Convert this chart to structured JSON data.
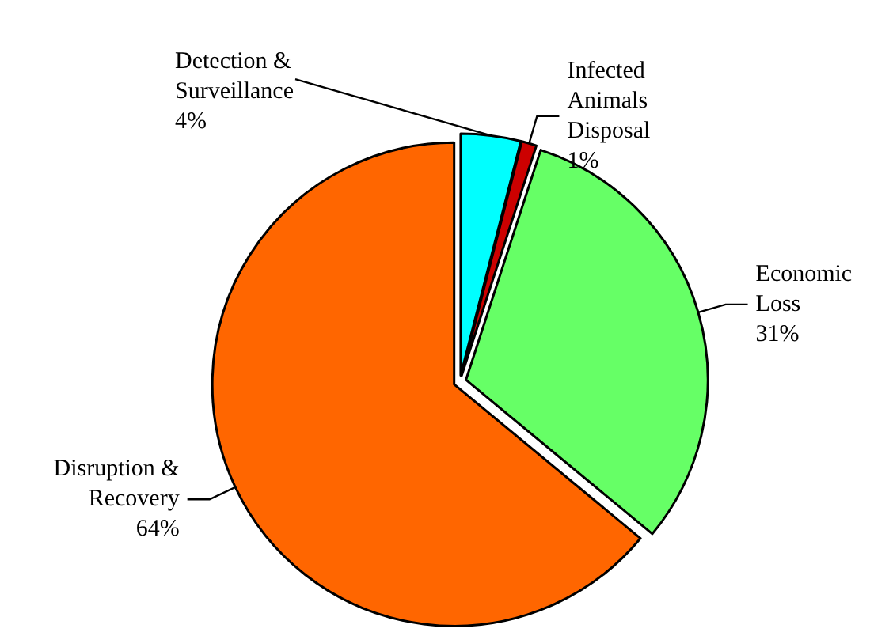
{
  "chart_data": {
    "type": "pie",
    "categories": [
      "Detection & Surveillance",
      "Infected Animals Disposal",
      "Economic Loss",
      "Disruption & Recovery"
    ],
    "values": [
      4,
      1,
      31,
      64
    ],
    "value_labels": [
      "4%",
      "1%",
      "31%",
      "64%"
    ],
    "colors": [
      "#00ffff",
      "#cc0000",
      "#66ff66",
      "#ff6600"
    ],
    "legend": false
  }
}
